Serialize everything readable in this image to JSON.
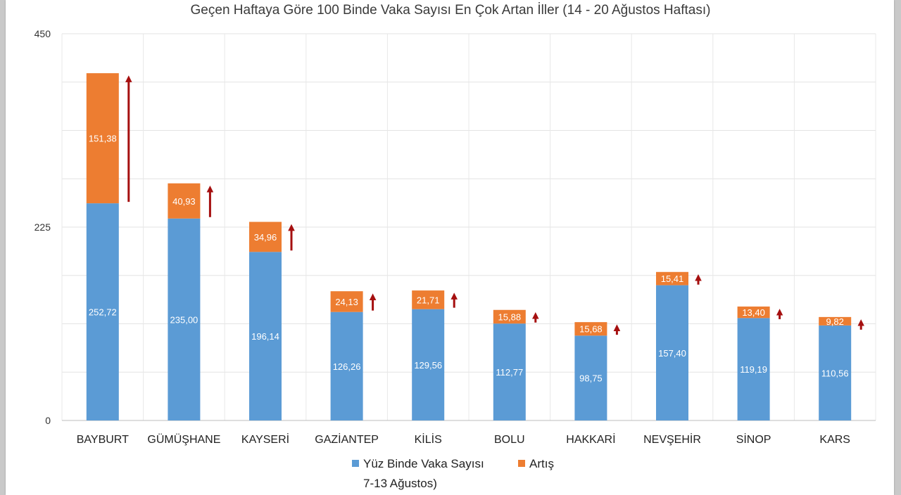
{
  "chart_data": {
    "type": "bar",
    "stacked": true,
    "title": "Geçen Haftaya Göre 100 Binde Vaka Sayısı En Çok Artan İller (14 - 20 Ağustos Haftası)",
    "categories": [
      "BAYBURT",
      "GÜMÜŞHANE",
      "KAYSERİ",
      "GAZİANTEP",
      "KİLİS",
      "BOLU",
      "HAKKARİ",
      "NEVŞEHİR",
      "SİNOP",
      "KARS"
    ],
    "series": [
      {
        "name": "Yüz Binde Vaka Sayısı 7-13 Ağustos)",
        "color": "#5b9bd5",
        "values": [
          252.72,
          235.0,
          196.14,
          126.26,
          129.56,
          112.77,
          98.75,
          157.4,
          119.19,
          110.56
        ],
        "labels": [
          "252,72",
          "235,00",
          "196,14",
          "126,26",
          "129,56",
          "112,77",
          "98,75",
          "157,40",
          "119,19",
          "110,56"
        ]
      },
      {
        "name": "Artış",
        "color": "#ed7d31",
        "values": [
          151.38,
          40.93,
          34.96,
          24.13,
          21.71,
          15.88,
          15.68,
          15.41,
          13.4,
          9.82
        ],
        "labels": [
          "151,38",
          "40,93",
          "34,96",
          "24,13",
          "21,71",
          "15,88",
          "15,68",
          "15,41",
          "13,40",
          "9,82"
        ]
      }
    ],
    "yticks": [
      0,
      225,
      450
    ],
    "ytick_labels": [
      "0",
      "225",
      "450"
    ],
    "ylim": [
      0,
      450
    ],
    "grid": true,
    "arrow_color": "#a50f0f",
    "legend_position": "bottom"
  },
  "legend": {
    "series1_line1": "Yüz Binde Vaka Sayısı",
    "series1_line2": "7-13 Ağustos)",
    "series2": "Artış"
  }
}
